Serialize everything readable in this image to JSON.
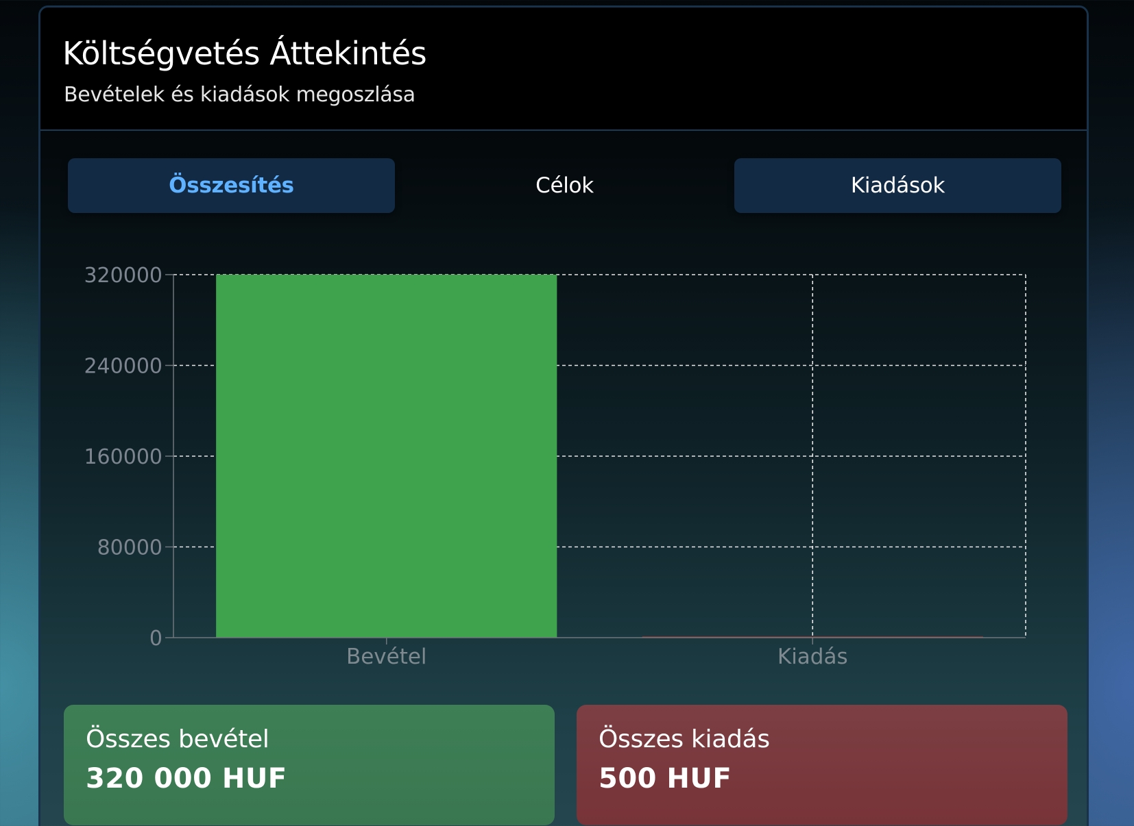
{
  "header": {
    "title": "Költségvetés Áttekintés",
    "subtitle": "Bevételek és kiadások megoszlása"
  },
  "tabs": [
    {
      "label": "Összesítés",
      "active": true
    },
    {
      "label": "Célok",
      "active": false
    },
    {
      "label": "Kiadások",
      "active": false
    }
  ],
  "chart_data": {
    "type": "bar",
    "categories": [
      "Bevétel",
      "Kiadás"
    ],
    "values": [
      320000,
      500
    ],
    "colors": [
      "#3fa34d",
      "#c0392b"
    ],
    "ylim": [
      0,
      320000
    ],
    "yticks": [
      "0",
      "80000",
      "160000",
      "240000",
      "320000"
    ],
    "grid": true
  },
  "summary": {
    "income": {
      "label": "Összes bevétel",
      "value": "320 000 HUF",
      "color": "#3e7f55"
    },
    "expense": {
      "label": "Összes kiadás",
      "value": "500 HUF",
      "color": "#7c3f43"
    }
  }
}
